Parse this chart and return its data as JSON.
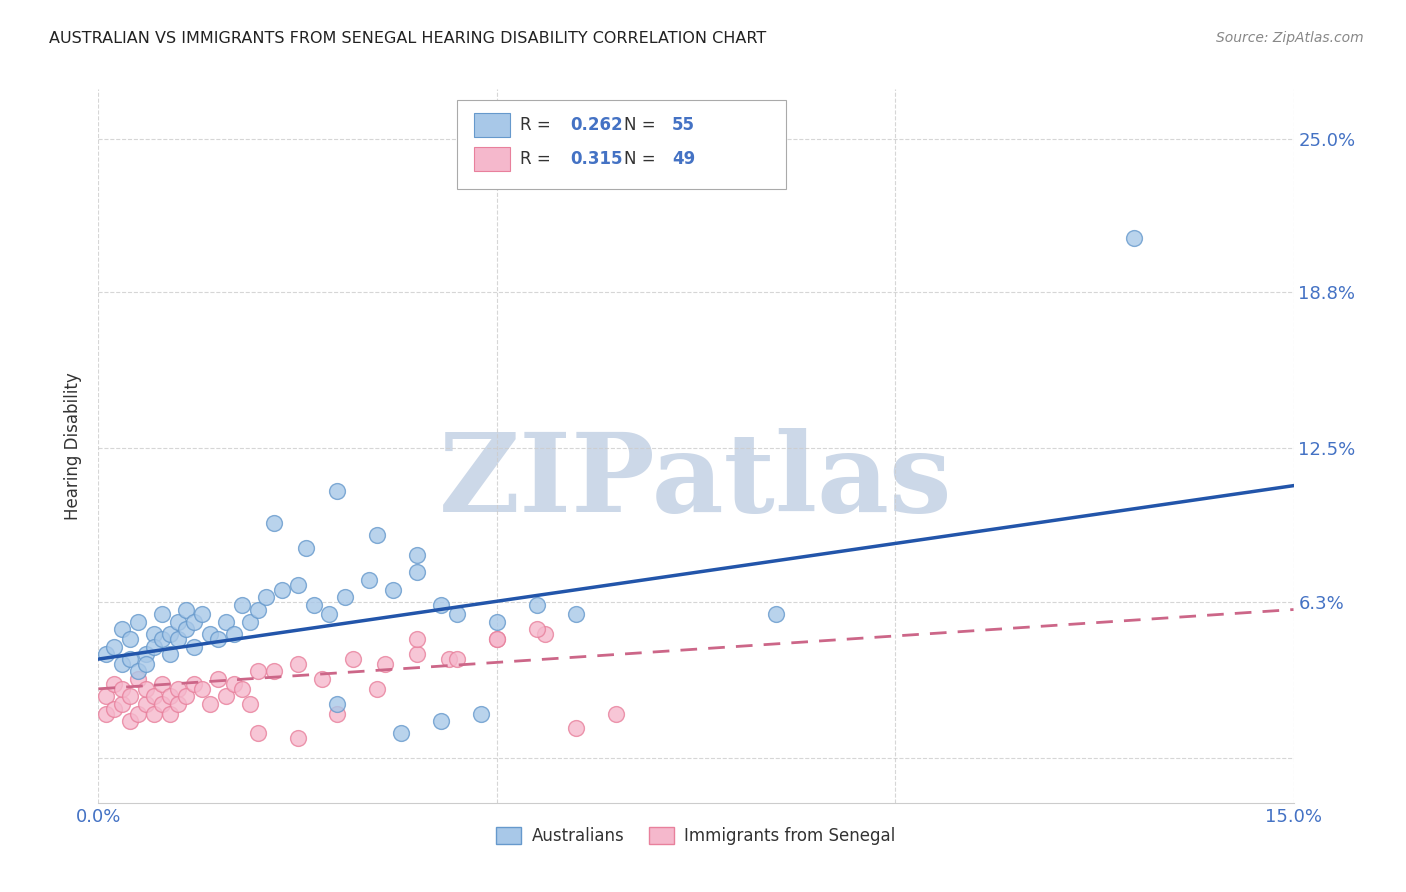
{
  "title": "AUSTRALIAN VS IMMIGRANTS FROM SENEGAL HEARING DISABILITY CORRELATION CHART",
  "source": "Source: ZipAtlas.com",
  "ylabel": "Hearing Disability",
  "xlabel": "",
  "xlim": [
    0.0,
    0.15
  ],
  "ylim": [
    -0.018,
    0.27
  ],
  "ytick_vals": [
    0.0,
    0.063,
    0.125,
    0.188,
    0.25
  ],
  "ytick_labels": [
    "",
    "6.3%",
    "12.5%",
    "18.8%",
    "25.0%"
  ],
  "xtick_vals": [
    0.0,
    0.05,
    0.1,
    0.15
  ],
  "xtick_labels": [
    "0.0%",
    "",
    "",
    "15.0%"
  ],
  "background_color": "#ffffff",
  "watermark": "ZIPatlas",
  "watermark_color": "#ccd8e8",
  "grid_color": "#cccccc",
  "aus_color": "#a8c8e8",
  "aus_edge_color": "#6699cc",
  "imm_color": "#f5b8cc",
  "imm_edge_color": "#e8809c",
  "aus_line_color": "#2255aa",
  "imm_line_color": "#cc6688",
  "R_aus": "0.262",
  "N_aus": "55",
  "R_imm": "0.315",
  "N_imm": "49",
  "legend_label_aus": "Australians",
  "legend_label_imm": "Immigrants from Senegal",
  "aus_line_start_y": 0.04,
  "aus_line_end_y": 0.11,
  "imm_line_start_y": 0.028,
  "imm_line_end_y": 0.06,
  "aus_x": [
    0.001,
    0.002,
    0.003,
    0.003,
    0.004,
    0.004,
    0.005,
    0.005,
    0.006,
    0.006,
    0.007,
    0.007,
    0.008,
    0.008,
    0.009,
    0.009,
    0.01,
    0.01,
    0.011,
    0.011,
    0.012,
    0.012,
    0.013,
    0.014,
    0.015,
    0.016,
    0.017,
    0.018,
    0.019,
    0.02,
    0.021,
    0.023,
    0.025,
    0.027,
    0.029,
    0.031,
    0.034,
    0.037,
    0.04,
    0.043,
    0.022,
    0.026,
    0.03,
    0.035,
    0.04,
    0.045,
    0.05,
    0.055,
    0.06,
    0.038,
    0.043,
    0.048,
    0.085,
    0.13,
    0.03
  ],
  "aus_y": [
    0.042,
    0.045,
    0.038,
    0.052,
    0.04,
    0.048,
    0.035,
    0.055,
    0.042,
    0.038,
    0.05,
    0.045,
    0.048,
    0.058,
    0.042,
    0.05,
    0.055,
    0.048,
    0.06,
    0.052,
    0.055,
    0.045,
    0.058,
    0.05,
    0.048,
    0.055,
    0.05,
    0.062,
    0.055,
    0.06,
    0.065,
    0.068,
    0.07,
    0.062,
    0.058,
    0.065,
    0.072,
    0.068,
    0.075,
    0.062,
    0.095,
    0.085,
    0.108,
    0.09,
    0.082,
    0.058,
    0.055,
    0.062,
    0.058,
    0.01,
    0.015,
    0.018,
    0.058,
    0.21,
    0.022
  ],
  "imm_x": [
    0.001,
    0.001,
    0.002,
    0.002,
    0.003,
    0.003,
    0.004,
    0.004,
    0.005,
    0.005,
    0.006,
    0.006,
    0.007,
    0.007,
    0.008,
    0.008,
    0.009,
    0.009,
    0.01,
    0.01,
    0.011,
    0.012,
    0.013,
    0.014,
    0.015,
    0.016,
    0.017,
    0.018,
    0.019,
    0.02,
    0.022,
    0.025,
    0.028,
    0.032,
    0.036,
    0.04,
    0.044,
    0.05,
    0.056,
    0.02,
    0.025,
    0.03,
    0.035,
    0.04,
    0.045,
    0.05,
    0.055,
    0.06,
    0.065
  ],
  "imm_y": [
    0.018,
    0.025,
    0.02,
    0.03,
    0.022,
    0.028,
    0.015,
    0.025,
    0.018,
    0.032,
    0.022,
    0.028,
    0.018,
    0.025,
    0.03,
    0.022,
    0.025,
    0.018,
    0.028,
    0.022,
    0.025,
    0.03,
    0.028,
    0.022,
    0.032,
    0.025,
    0.03,
    0.028,
    0.022,
    0.035,
    0.035,
    0.038,
    0.032,
    0.04,
    0.038,
    0.042,
    0.04,
    0.048,
    0.05,
    0.01,
    0.008,
    0.018,
    0.028,
    0.048,
    0.04,
    0.048,
    0.052,
    0.012,
    0.018
  ]
}
